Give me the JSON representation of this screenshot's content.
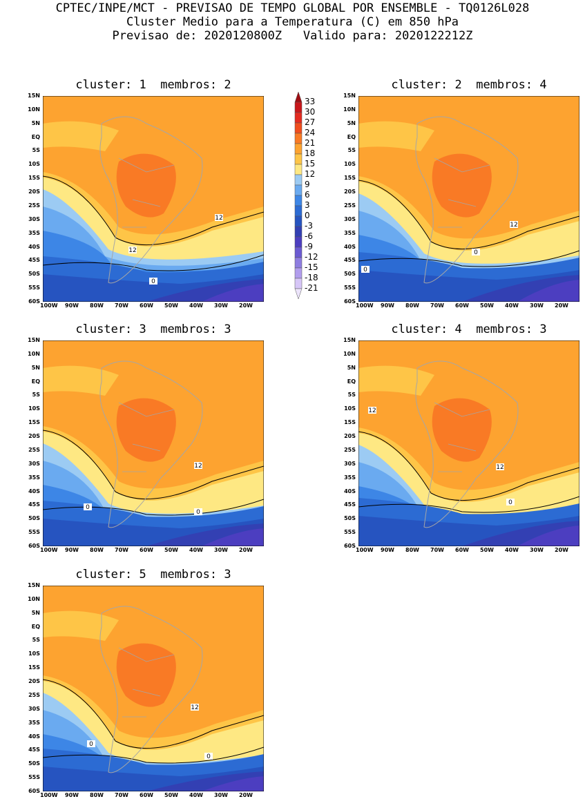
{
  "header": {
    "line1": "CPTEC/INPE/MCT - PREVISAO DE TEMPO GLOBAL POR ENSEMBLE - TQ0126L028",
    "line2": "Cluster Medio para a Temperatura (C) em 850 hPa",
    "line3": "Previsao de: 2020120800Z   Valido para: 2020122212Z"
  },
  "panels": [
    {
      "title": "cluster: 1  membros: 2",
      "contour_labels": [
        "12",
        "12",
        "0"
      ]
    },
    {
      "title": "cluster: 2  membros: 4",
      "contour_labels": [
        "12",
        "0",
        "0"
      ]
    },
    {
      "title": "cluster: 3  membros: 3",
      "contour_labels": [
        "12",
        "0",
        "0"
      ]
    },
    {
      "title": "cluster: 4  membros: 3",
      "contour_labels": [
        "12",
        "12",
        "0"
      ]
    },
    {
      "title": "cluster: 5  membros: 3",
      "contour_labels": [
        "12",
        "0",
        "0"
      ]
    }
  ],
  "lat_ticks": [
    "15N",
    "10N",
    "5N",
    "EQ",
    "5S",
    "10S",
    "15S",
    "20S",
    "25S",
    "30S",
    "35S",
    "40S",
    "45S",
    "50S",
    "55S",
    "60S"
  ],
  "lon_ticks": [
    "100W",
    "90W",
    "80W",
    "70W",
    "60W",
    "50W",
    "40W",
    "30W",
    "20W"
  ],
  "colorbar": {
    "labels": [
      "33",
      "30",
      "27",
      "24",
      "21",
      "18",
      "15",
      "12",
      "9",
      "6",
      "3",
      "0",
      "-3",
      "-6",
      "-9",
      "-12",
      "-15",
      "-18",
      "-21"
    ],
    "colors": [
      "#9e0d12",
      "#c8171b",
      "#e32b20",
      "#f04d1e",
      "#f97a25",
      "#fda330",
      "#fec547",
      "#fee883",
      "#9ccbf3",
      "#6aaaf0",
      "#3d86e6",
      "#2c6bd3",
      "#2654c0",
      "#3340b3",
      "#4c3ec0",
      "#6b5ad2",
      "#8e7de0",
      "#b19ded",
      "#d6c6f7",
      "#ece4fb"
    ]
  }
}
